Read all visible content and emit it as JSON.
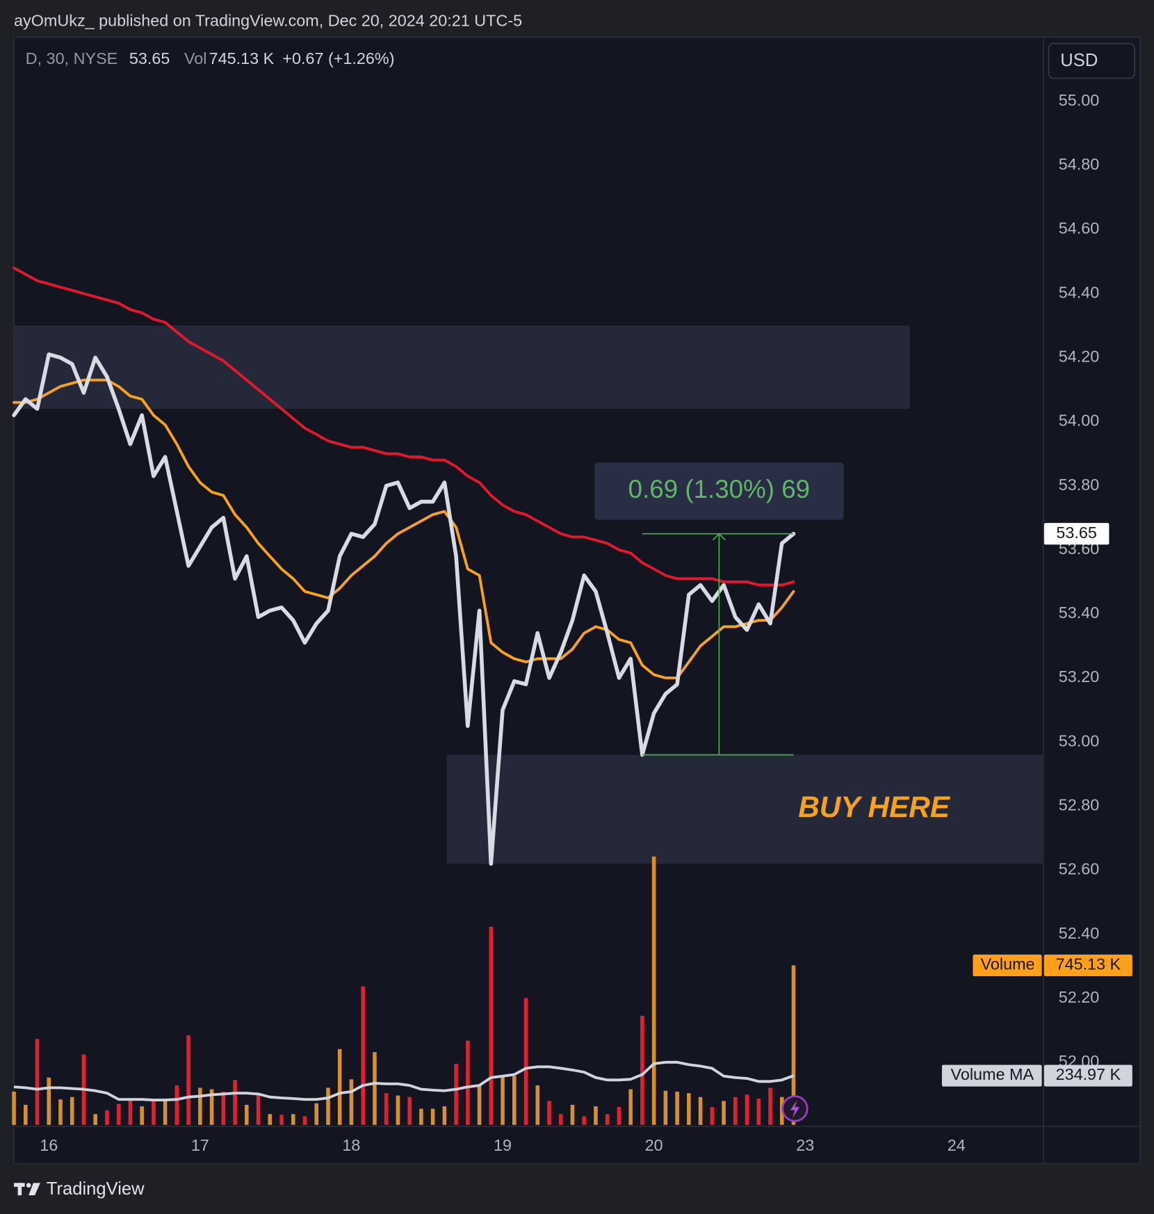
{
  "chart_data": {
    "type": "line",
    "header": "ayOmUkz_ published on TradingView.com, Dec 20, 2024 20:21 UTC-5",
    "legend": {
      "symbol": "D, 30, NYSE",
      "vol_label": "Vol",
      "change": "+0.67 (+1.26%)"
    },
    "currency": "USD",
    "footer": "TradingView",
    "xlim": [
      0,
      88.4
    ],
    "xticks": [
      {
        "value": 3,
        "label": "16"
      },
      {
        "value": 16,
        "label": "17"
      },
      {
        "value": 29,
        "label": "18"
      },
      {
        "value": 42,
        "label": "19"
      },
      {
        "value": 55,
        "label": "20"
      },
      {
        "value": 68,
        "label": "23"
      },
      {
        "value": 81,
        "label": "24"
      }
    ],
    "ylim": [
      51.8,
      55.2
    ],
    "yticks": [
      {
        "value": 55,
        "label": "55.00"
      },
      {
        "value": 54.8,
        "label": "54.80"
      },
      {
        "value": 54.6,
        "label": "54.60"
      },
      {
        "value": 54.4,
        "label": "54.40"
      },
      {
        "value": 54.2,
        "label": "54.20"
      },
      {
        "value": 54,
        "label": "54.00"
      },
      {
        "value": 53.8,
        "label": "53.80"
      },
      {
        "value": 53.6,
        "label": "53.60"
      },
      {
        "value": 53.4,
        "label": "53.40"
      },
      {
        "value": 53.2,
        "label": "53.20"
      },
      {
        "value": 53,
        "label": "53.00"
      },
      {
        "value": 52.8,
        "label": "52.80"
      },
      {
        "value": 52.6,
        "label": "52.60"
      },
      {
        "value": 52.4,
        "label": "52.40"
      },
      {
        "value": 52.2,
        "label": "52.20"
      },
      {
        "value": 52,
        "label": "52.00"
      }
    ],
    "series": [
      {
        "color": "#d9dae3",
        "values": [
          54.02,
          54.07,
          54.04,
          54.21,
          54.2,
          54.18,
          54.09,
          54.2,
          54.14,
          54.04,
          53.93,
          54.02,
          53.83,
          53.89,
          53.72,
          53.55,
          53.61,
          53.67,
          53.7,
          53.51,
          53.58,
          53.39,
          53.41,
          53.42,
          53.38,
          53.31,
          53.37,
          53.41,
          53.58,
          53.65,
          53.64,
          53.68,
          53.8,
          53.81,
          53.73,
          53.75,
          53.75,
          53.81,
          53.58,
          53.05,
          53.41,
          52.62,
          53.1,
          53.19,
          53.18,
          53.34,
          53.2,
          53.28,
          53.38,
          53.52,
          53.47,
          53.34,
          53.2,
          53.26,
          52.96,
          53.09,
          53.15,
          53.18,
          53.46,
          53.49,
          53.44,
          53.49,
          53.39,
          53.35,
          53.43,
          53.37,
          53.62,
          53.65
        ]
      },
      {
        "color": "#f7a21b",
        "values": [
          54.06,
          54.06,
          54.07,
          54.09,
          54.11,
          54.12,
          54.13,
          54.13,
          54.13,
          54.11,
          54.08,
          54.07,
          54.02,
          53.99,
          53.93,
          53.86,
          53.81,
          53.78,
          53.77,
          53.71,
          53.67,
          53.62,
          53.58,
          53.54,
          53.51,
          53.47,
          53.46,
          53.45,
          53.48,
          53.52,
          53.55,
          53.58,
          53.62,
          53.65,
          53.67,
          53.69,
          53.71,
          53.72,
          53.67,
          53.54,
          53.52,
          53.31,
          53.28,
          53.26,
          53.25,
          53.26,
          53.26,
          53.26,
          53.29,
          53.34,
          53.36,
          53.35,
          53.32,
          53.31,
          53.24,
          53.21,
          53.2,
          53.2,
          53.25,
          53.3,
          53.33,
          53.36,
          53.36,
          53.37,
          53.38,
          53.38,
          53.42,
          53.47
        ]
      },
      {
        "color": "#e3182d",
        "values": [
          54.48,
          54.46,
          54.44,
          54.43,
          54.42,
          54.41,
          54.4,
          54.39,
          54.38,
          54.37,
          54.35,
          54.34,
          54.32,
          54.31,
          54.28,
          54.25,
          54.23,
          54.21,
          54.19,
          54.16,
          54.13,
          54.1,
          54.07,
          54.04,
          54.01,
          53.98,
          53.96,
          53.94,
          53.93,
          53.92,
          53.92,
          53.91,
          53.9,
          53.9,
          53.89,
          53.89,
          53.88,
          53.88,
          53.86,
          53.83,
          53.81,
          53.77,
          53.74,
          53.72,
          53.71,
          53.69,
          53.67,
          53.65,
          53.64,
          53.64,
          53.63,
          53.62,
          53.6,
          53.59,
          53.56,
          53.54,
          53.52,
          53.51,
          53.51,
          53.51,
          53.51,
          53.5,
          53.5,
          53.5,
          53.49,
          53.49,
          53.49,
          53.5
        ]
      }
    ],
    "y2lim": [
      0,
      5040
    ],
    "volume": {
      "name": "Volume",
      "values": [
        161,
        100,
        405,
        226,
        125,
        136,
        333,
        57,
        75,
        104,
        125,
        93,
        118,
        118,
        190,
        422,
        179,
        172,
        161,
        215,
        100,
        154,
        57,
        54,
        57,
        47,
        107,
        179,
        358,
        218,
        648,
        344,
        154,
        143,
        136,
        82,
        82,
        93,
        290,
        397,
        190,
        924,
        233,
        233,
        594,
        190,
        118,
        57,
        100,
        47,
        93,
        57,
        90,
        172,
        512,
        1249,
        165,
        161,
        154,
        136,
        90,
        118,
        136,
        147,
        129,
        179,
        136,
        745.13
      ],
      "value_labels": [
        null,
        null,
        null,
        null,
        null,
        null,
        null,
        null,
        null,
        null,
        null,
        null,
        null,
        null,
        null,
        null,
        null,
        null,
        null,
        null,
        null,
        null,
        null,
        null,
        null,
        null,
        null,
        null,
        null,
        null,
        null,
        null,
        null,
        null,
        null,
        null,
        null,
        null,
        null,
        null,
        null,
        null,
        null,
        null,
        null,
        null,
        null,
        null,
        null,
        null,
        null,
        null,
        null,
        null,
        null,
        null,
        null,
        null,
        null,
        null,
        null,
        null,
        null,
        null,
        null,
        null,
        null,
        "745.13 K"
      ],
      "colors": [
        "#d98f2b",
        "#d98f2b",
        "#e2202f",
        "#d98f2b",
        "#d98f2b",
        "#d98f2b",
        "#e2202f",
        "#d98f2b",
        "#e2202f",
        "#e2202f",
        "#e2202f",
        "#d98f2b",
        "#e2202f",
        "#d98f2b",
        "#e2202f",
        "#e2202f",
        "#d98f2b",
        "#d98f2b",
        "#e2202f",
        "#e2202f",
        "#d98f2b",
        "#e2202f",
        "#d98f2b",
        "#e2202f",
        "#d98f2b",
        "#e2202f",
        "#d98f2b",
        "#d98f2b",
        "#d98f2b",
        "#d98f2b",
        "#e2202f",
        "#d98f2b",
        "#e2202f",
        "#d98f2b",
        "#e2202f",
        "#d98f2b",
        "#d98f2b",
        "#d98f2b",
        "#e2202f",
        "#e2202f",
        "#d98f2b",
        "#e2202f",
        "#d98f2b",
        "#d98f2b",
        "#e2202f",
        "#d98f2b",
        "#e2202f",
        "#e2202f",
        "#d98f2b",
        "#e2202f",
        "#d98f2b",
        "#e2202f",
        "#e2202f",
        "#d98f2b",
        "#e2202f",
        "#d98f2b",
        "#d98f2b",
        "#d98f2b",
        "#d98f2b",
        "#d98f2b",
        "#e2202f",
        "#d98f2b",
        "#e2202f",
        "#e2202f",
        "#e2202f",
        "#e2202f",
        "#d98f2b",
        "#d98f2b"
      ],
      "tag_color": "#ff9f1a"
    },
    "volume_ma": {
      "name": "Volume MA",
      "color": "#d1d4dc",
      "values": [
        183,
        179,
        172,
        179,
        179,
        175,
        172,
        165,
        154,
        125,
        125,
        125,
        122,
        122,
        125,
        136,
        140,
        147,
        150,
        154,
        154,
        150,
        136,
        132,
        129,
        125,
        125,
        132,
        154,
        161,
        190,
        200,
        197,
        197,
        190,
        172,
        168,
        165,
        172,
        183,
        190,
        226,
        233,
        240,
        269,
        276,
        276,
        269,
        261,
        251,
        226,
        215,
        215,
        218,
        240,
        290,
        297,
        297,
        286,
        279,
        269,
        233,
        226,
        222,
        208,
        208,
        215,
        234.97
      ],
      "value_labels": [
        null,
        null,
        null,
        null,
        null,
        null,
        null,
        null,
        null,
        null,
        null,
        null,
        null,
        null,
        null,
        null,
        null,
        null,
        null,
        null,
        null,
        null,
        null,
        null,
        null,
        null,
        null,
        null,
        null,
        null,
        null,
        null,
        null,
        null,
        null,
        null,
        null,
        null,
        null,
        null,
        null,
        null,
        null,
        null,
        null,
        null,
        null,
        null,
        null,
        null,
        null,
        null,
        null,
        null,
        null,
        null,
        null,
        null,
        null,
        null,
        null,
        null,
        null,
        null,
        null,
        null,
        null,
        "234.97 K"
      ]
    },
    "zones": [
      {
        "x": [
          0,
          77
        ],
        "y": [
          54.04,
          54.3
        ]
      },
      {
        "x": [
          37.2,
          88.4
        ],
        "y": [
          52.62,
          52.96
        ],
        "label": "BUY HERE"
      }
    ],
    "measure": {
      "x": [
        54,
        67
      ],
      "y": [
        52.96,
        53.65
      ],
      "arrow_x": 60.6,
      "label": "0.69 (1.30%) 69"
    }
  }
}
